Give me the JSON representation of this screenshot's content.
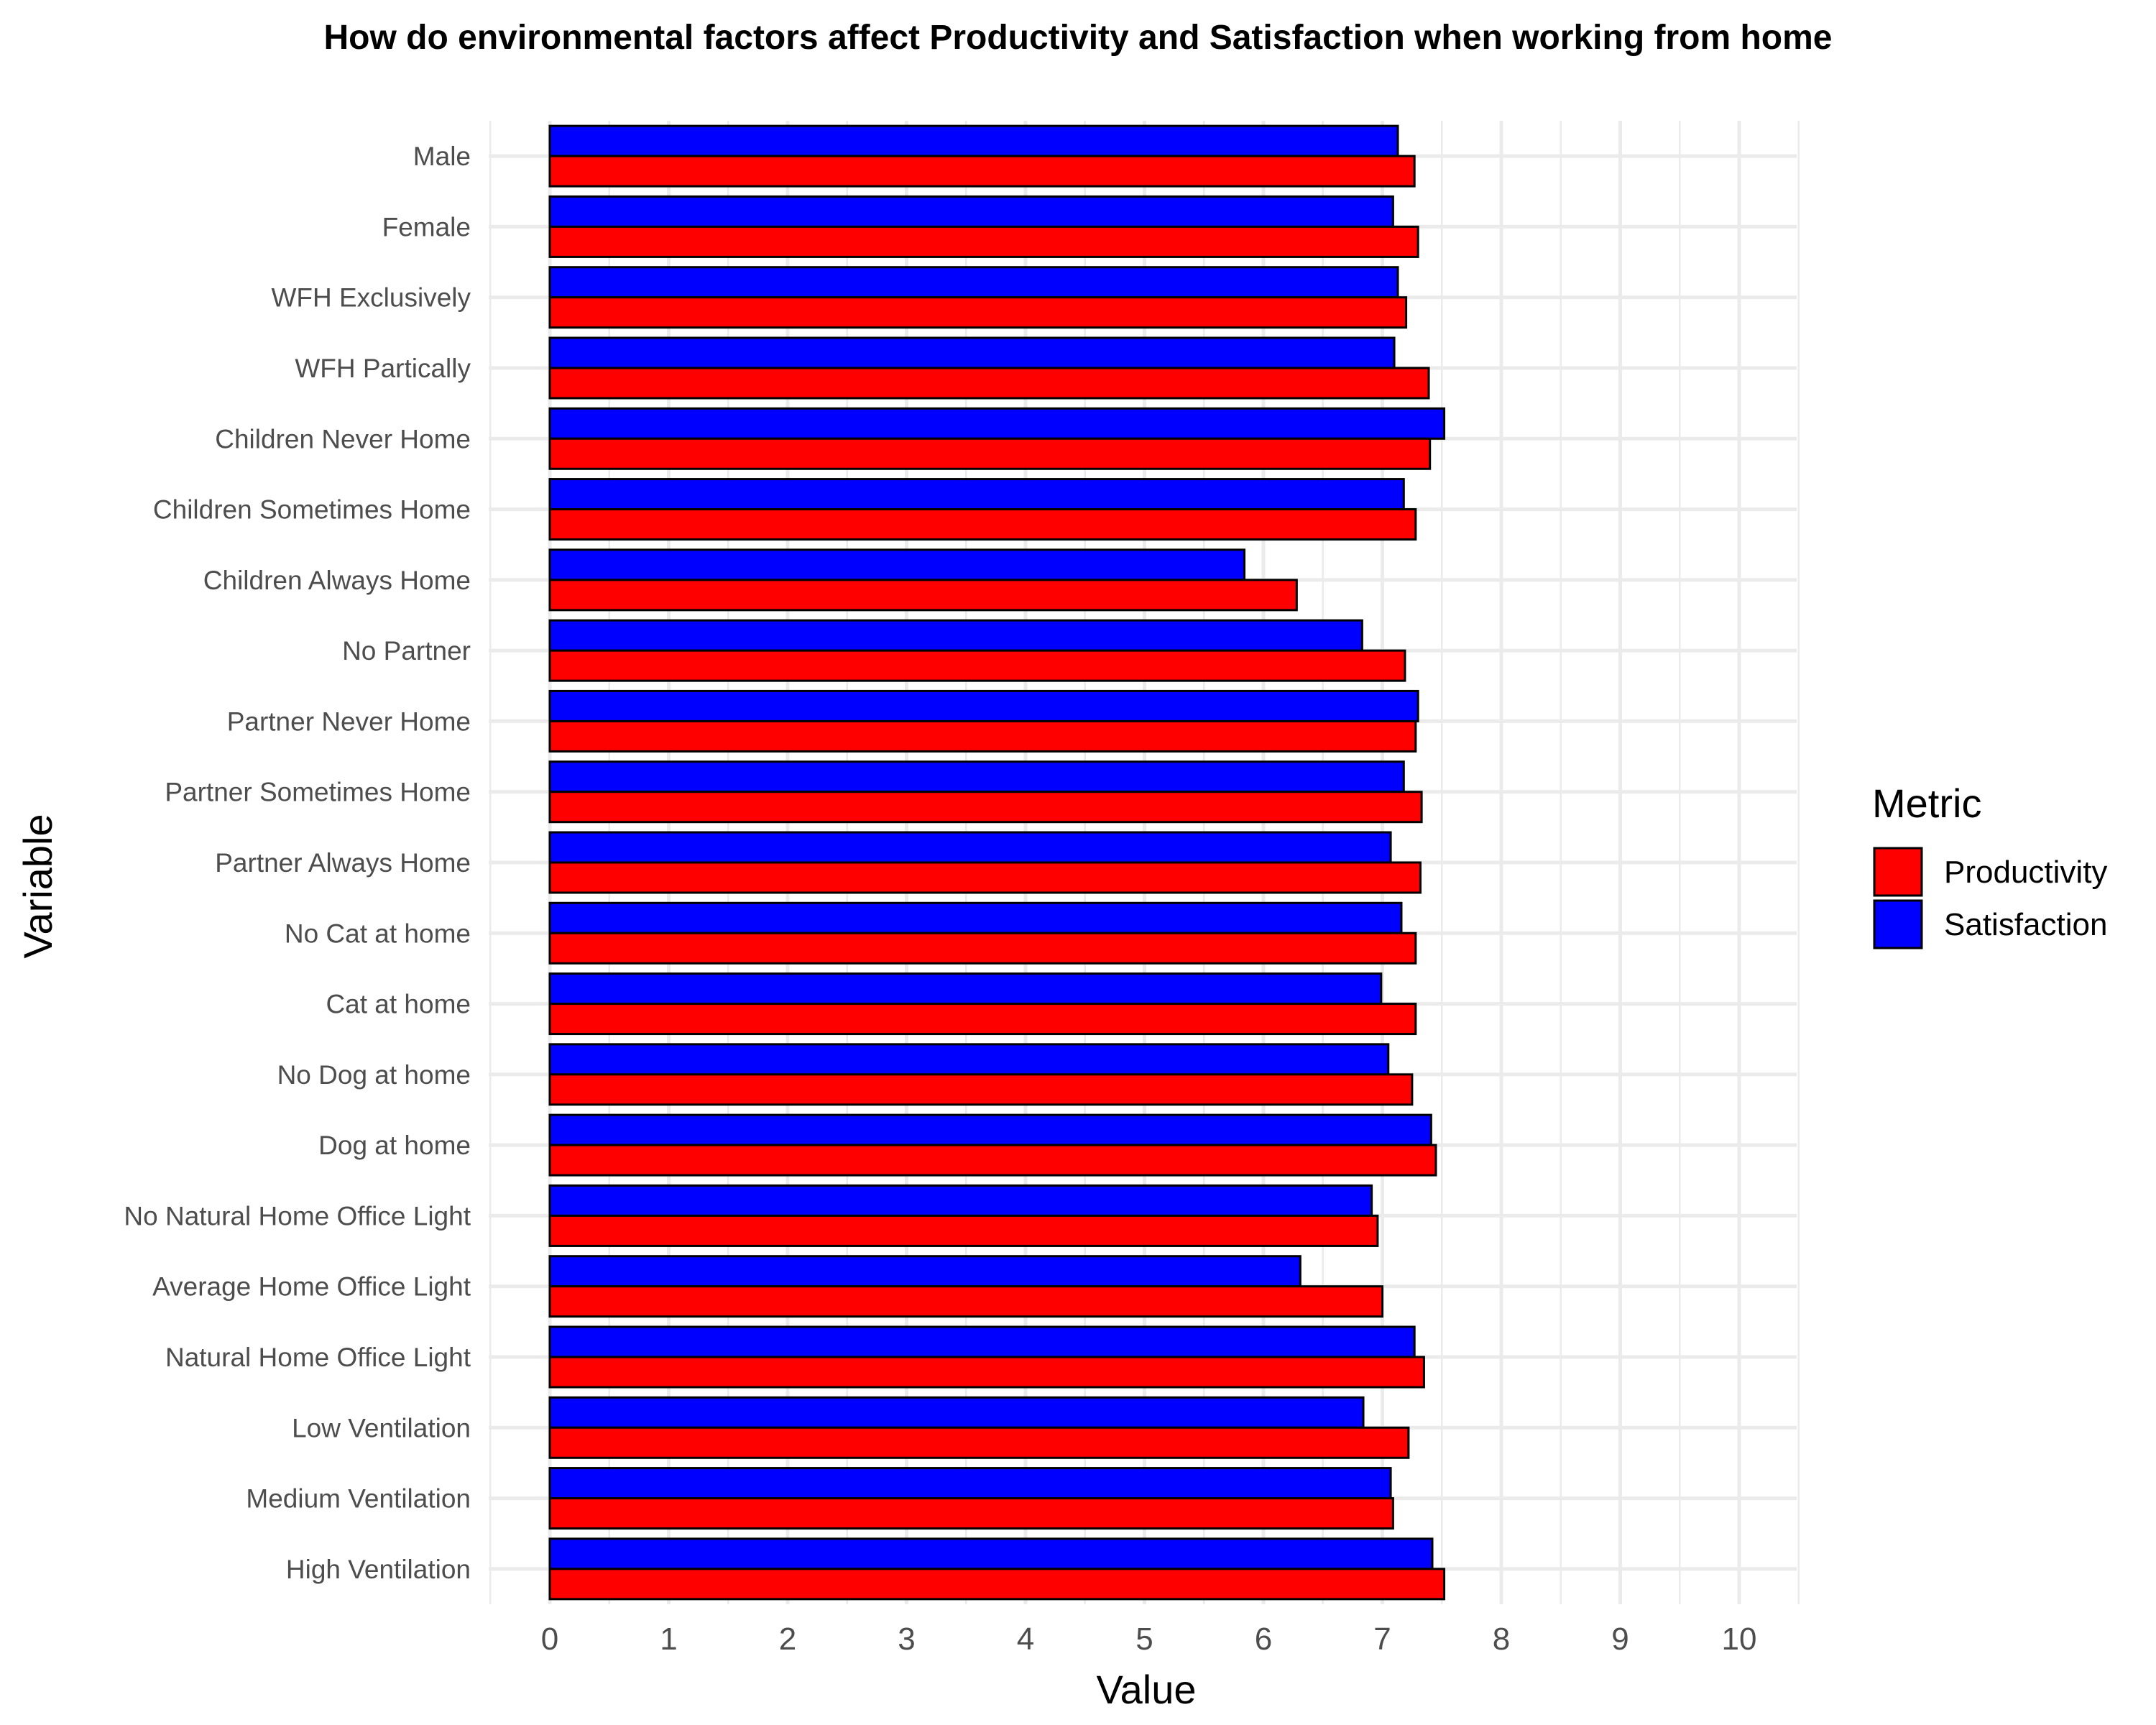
{
  "chart_data": {
    "type": "bar",
    "orientation": "horizontal",
    "title": "How do environmental factors affect Productivity and Satisfaction when working from home",
    "xlabel": "Value",
    "ylabel": "Variable",
    "xlim": [
      0,
      10
    ],
    "x_ticks": [
      "0",
      "1",
      "2",
      "3",
      "4",
      "5",
      "6",
      "7",
      "8",
      "9",
      "10"
    ],
    "grid": true,
    "legend_title": "Metric",
    "legend_position": "right",
    "categories": [
      "Male",
      "Female",
      "WFH Exclusively",
      "WFH Partically",
      "Children Never Home",
      "Children Sometimes Home",
      "Children Always Home",
      "No Partner",
      "Partner Never Home",
      "Partner Sometimes Home",
      "Partner Always Home",
      "No Cat at home",
      "Cat at home",
      "No Dog at home",
      "Dog at home",
      "No Natural Home Office Light",
      "Average Home Office Light",
      "Natural Home Office Light",
      "Low Ventilation",
      "Medium Ventilation",
      "High Ventilation"
    ],
    "series": [
      {
        "name": "Productivity",
        "color": "#ff0000",
        "values": [
          7.27,
          7.3,
          7.2,
          7.39,
          7.4,
          7.28,
          6.28,
          7.19,
          7.28,
          7.33,
          7.32,
          7.28,
          7.28,
          7.25,
          7.45,
          6.96,
          7.0,
          7.35,
          7.22,
          7.09,
          7.52
        ]
      },
      {
        "name": "Satisfaction",
        "color": "#0000ff",
        "values": [
          7.13,
          7.09,
          7.13,
          7.1,
          7.52,
          7.18,
          5.84,
          6.83,
          7.3,
          7.18,
          7.07,
          7.16,
          6.99,
          7.05,
          7.41,
          6.91,
          6.31,
          7.27,
          6.84,
          7.07,
          7.42
        ]
      }
    ]
  }
}
